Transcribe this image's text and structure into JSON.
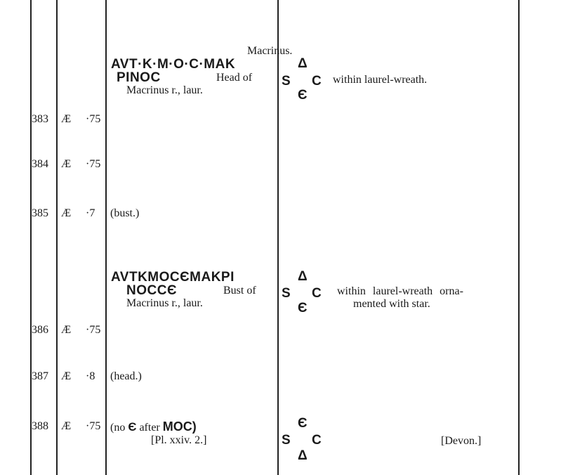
{
  "section_title": "Macrinus.",
  "groups": [
    {
      "obverse_legend_1": "AVT·K·M·O·C·MAK",
      "obverse_legend_2": "PINOC",
      "obverse_desc_1": "Head of",
      "obverse_desc_2": "Macrinus r., laur.",
      "reverse_top": "Δ",
      "reverse_left": "S",
      "reverse_right": "C",
      "reverse_bottom": "Є",
      "reverse_desc": "within laurel-wreath."
    },
    {
      "obverse_legend_1": "AVTKMOCЄMAKPI",
      "obverse_legend_2": "NOCCЄ",
      "obverse_desc_1": "Bust of",
      "obverse_desc_2": "Macrinus r., laur.",
      "reverse_top": "Δ",
      "reverse_left": "S",
      "reverse_right": "C",
      "reverse_bottom": "Є",
      "reverse_desc_1": "within laurel-wreath orna-",
      "reverse_desc_2": "mented with star."
    }
  ],
  "entries": [
    {
      "no": "383",
      "metal": "Æ",
      "size": "·75",
      "note": ""
    },
    {
      "no": "384",
      "metal": "Æ",
      "size": "·75",
      "note": ""
    },
    {
      "no": "385",
      "metal": "Æ",
      "size": "·7",
      "note": "(bust.)"
    },
    {
      "no": "386",
      "metal": "Æ",
      "size": "·75",
      "note": ""
    },
    {
      "no": "387",
      "metal": "Æ",
      "size": "·8",
      "note": "(head.)"
    },
    {
      "no": "388",
      "metal": "Æ",
      "size": "·75",
      "note_pre": "(no",
      "note_e": "Є",
      "note_mid": "after",
      "note_moc": "MOC)",
      "plate": "[Pl. xxiv. 2.]",
      "reverse_top": "Є",
      "reverse_left": "S",
      "reverse_right": "C",
      "reverse_bottom": "Δ",
      "provenance": "[Devon.]"
    }
  ]
}
